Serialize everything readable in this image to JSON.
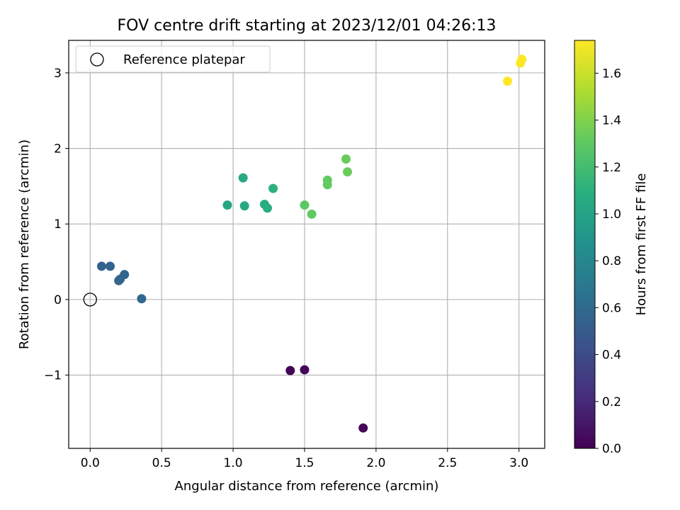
{
  "chart_data": {
    "type": "scatter",
    "title": "FOV centre drift starting at 2023/12/01 04:26:13",
    "xlabel": "Angular distance from reference (arcmin)",
    "ylabel": "Rotation from reference (arcmin)",
    "xlim": [
      -0.15,
      3.18
    ],
    "ylim": [
      -1.97,
      3.43
    ],
    "xticks": [
      0.0,
      0.5,
      1.0,
      1.5,
      2.0,
      2.5,
      3.0
    ],
    "xtick_labels": [
      "0.0",
      "0.5",
      "1.0",
      "1.5",
      "2.0",
      "2.5",
      "3.0"
    ],
    "yticks": [
      -1,
      0,
      1,
      2,
      3
    ],
    "ytick_labels": [
      "−1",
      "0",
      "1",
      "2",
      "3"
    ],
    "grid": true,
    "legend": {
      "position": "top-left",
      "entries": [
        "Reference platepar"
      ]
    },
    "reference_point": {
      "x": 0.0,
      "y": 0.0
    },
    "colorbar": {
      "label": "Hours from first FF file",
      "colormap": "viridis",
      "range": [
        0.0,
        1.74
      ],
      "ticks": [
        0.0,
        0.2,
        0.4,
        0.6,
        0.8,
        1.0,
        1.2,
        1.4,
        1.6
      ],
      "tick_labels": [
        "0.0",
        "0.2",
        "0.4",
        "0.6",
        "0.8",
        "1.0",
        "1.2",
        "1.4",
        "1.6"
      ]
    },
    "points": [
      {
        "x": 1.4,
        "y": -0.94,
        "hours": 0.02
      },
      {
        "x": 1.5,
        "y": -0.93,
        "hours": 0.03
      },
      {
        "x": 1.91,
        "y": -1.7,
        "hours": 0.03
      },
      {
        "x": 0.08,
        "y": 0.44,
        "hours": 0.55
      },
      {
        "x": 0.14,
        "y": 0.44,
        "hours": 0.56
      },
      {
        "x": 0.24,
        "y": 0.33,
        "hours": 0.56
      },
      {
        "x": 0.21,
        "y": 0.27,
        "hours": 0.56
      },
      {
        "x": 0.2,
        "y": 0.25,
        "hours": 0.57
      },
      {
        "x": 0.36,
        "y": 0.01,
        "hours": 0.58
      },
      {
        "x": 0.96,
        "y": 1.25,
        "hours": 1.02
      },
      {
        "x": 1.07,
        "y": 1.61,
        "hours": 1.05
      },
      {
        "x": 1.08,
        "y": 1.24,
        "hours": 1.06
      },
      {
        "x": 1.22,
        "y": 1.26,
        "hours": 1.08
      },
      {
        "x": 1.24,
        "y": 1.21,
        "hours": 1.09
      },
      {
        "x": 1.28,
        "y": 1.47,
        "hours": 1.1
      },
      {
        "x": 1.5,
        "y": 1.25,
        "hours": 1.3
      },
      {
        "x": 1.55,
        "y": 1.13,
        "hours": 1.31
      },
      {
        "x": 1.66,
        "y": 1.58,
        "hours": 1.32
      },
      {
        "x": 1.66,
        "y": 1.52,
        "hours": 1.32
      },
      {
        "x": 1.79,
        "y": 1.86,
        "hours": 1.33
      },
      {
        "x": 1.8,
        "y": 1.69,
        "hours": 1.34
      },
      {
        "x": 2.92,
        "y": 2.89,
        "hours": 1.74
      },
      {
        "x": 3.01,
        "y": 3.13,
        "hours": 1.74
      },
      {
        "x": 3.02,
        "y": 3.18,
        "hours": 1.74
      }
    ]
  }
}
